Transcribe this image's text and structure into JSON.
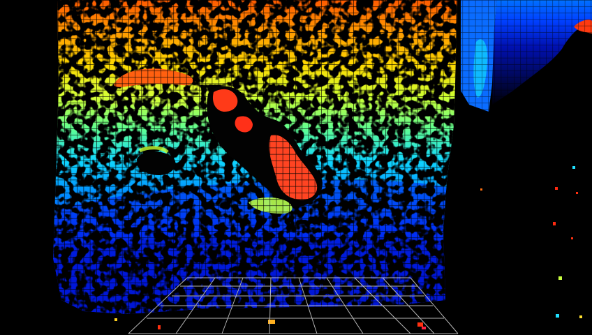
{
  "viewer": {
    "background": "#000000",
    "colormap": "jet",
    "colormap_stops": [
      "#00007f",
      "#0000ff",
      "#007fff",
      "#00ffff",
      "#7fff7f",
      "#ffff00",
      "#ff7f00",
      "#ff0000",
      "#7f0000"
    ],
    "cloud_grid_color": "#000000",
    "floor_grid_color": "#c8c8c8",
    "icons": {
      "floor": "ground-grid-icon",
      "cloud": "point-cloud-icon"
    }
  }
}
